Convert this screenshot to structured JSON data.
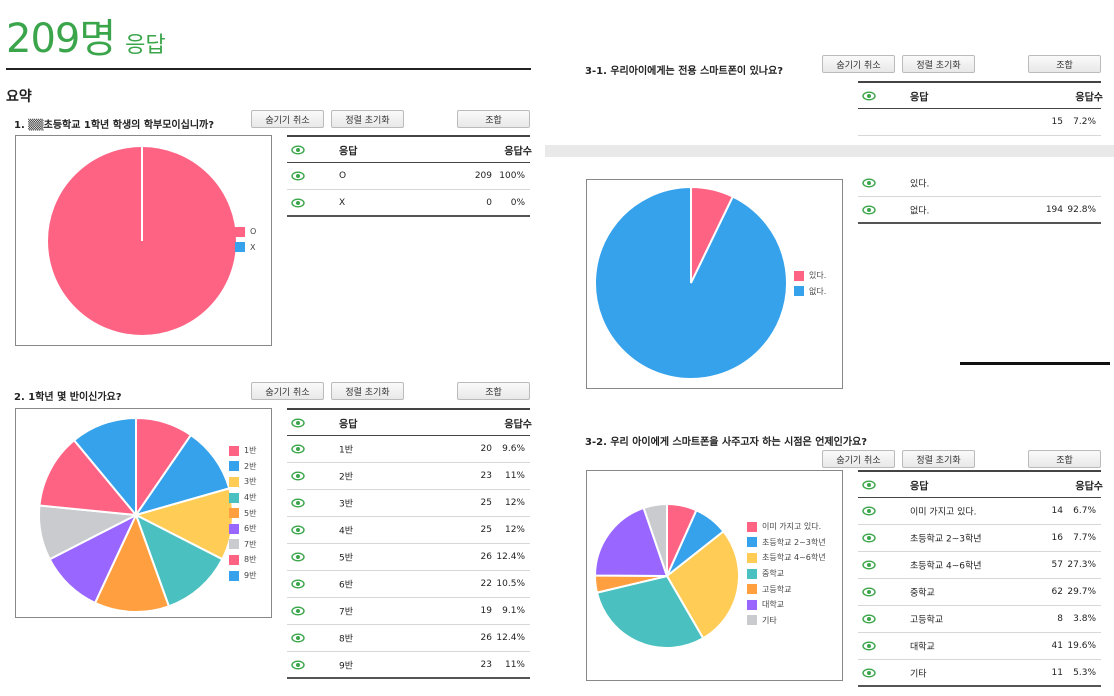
{
  "header": {
    "total_count": "209명",
    "total_word": "응답",
    "summary_label": "요약"
  },
  "buttons": {
    "hide": "숨기기 취소",
    "reset": "정렬 초기화",
    "combine": "조합"
  },
  "table_headers": {
    "answer": "응답",
    "count": "응답수"
  },
  "colors": {
    "eye": "#3aa54a",
    "title_green": "#3aa54a"
  },
  "chart_data": [
    {
      "type": "pie",
      "question": "1. ▒▒초등학교 1학년 학생의 학부모이십니까?",
      "categories": [
        "O",
        "X"
      ],
      "values": [
        209,
        0
      ],
      "percents": [
        "100%",
        "0%"
      ],
      "colors": [
        "#ff6384",
        "#36a2eb"
      ],
      "legend": "right"
    },
    {
      "type": "pie",
      "question": "2. 1학년 몇 반이신가요?",
      "categories": [
        "1반",
        "2반",
        "3반",
        "4반",
        "5반",
        "6반",
        "7반",
        "8반",
        "9반"
      ],
      "values": [
        20,
        23,
        25,
        25,
        26,
        22,
        19,
        26,
        23
      ],
      "percents": [
        "9.6%",
        "11%",
        "12%",
        "12%",
        "12.4%",
        "10.5%",
        "9.1%",
        "12.4%",
        "11%"
      ],
      "colors": [
        "#ff6384",
        "#36a2eb",
        "#ffcd56",
        "#4bc0c0",
        "#ff9f40",
        "#9966ff",
        "#c9cbcf",
        "#ff6384",
        "#36a2eb"
      ],
      "legend": "right"
    },
    {
      "type": "pie",
      "question": "3-1. 우리아이에게는 전용 스마트폰이 있나요?",
      "categories": [
        "있다.",
        "없다."
      ],
      "values": [
        15,
        194
      ],
      "percents": [
        "7.2%",
        "92.8%"
      ],
      "colors": [
        "#ff6384",
        "#36a2eb"
      ],
      "legend": "right"
    },
    {
      "type": "pie",
      "question": "3-2. 우리 아이에게 스마트폰을 사주고자 하는 시점은 언제인가요?",
      "categories": [
        "이미 가지고 있다.",
        "초등학교 2~3학년",
        "초등학교 4~6학년",
        "중학교",
        "고등학교",
        "대학교",
        "기타"
      ],
      "values": [
        14,
        16,
        57,
        62,
        8,
        41,
        11
      ],
      "percents": [
        "6.7%",
        "7.7%",
        "27.3%",
        "29.7%",
        "3.8%",
        "19.6%",
        "5.3%"
      ],
      "colors": [
        "#ff6384",
        "#36a2eb",
        "#ffcd56",
        "#4bc0c0",
        "#ff9f40",
        "#9966ff",
        "#c9cbcf"
      ],
      "legend": "right"
    }
  ]
}
